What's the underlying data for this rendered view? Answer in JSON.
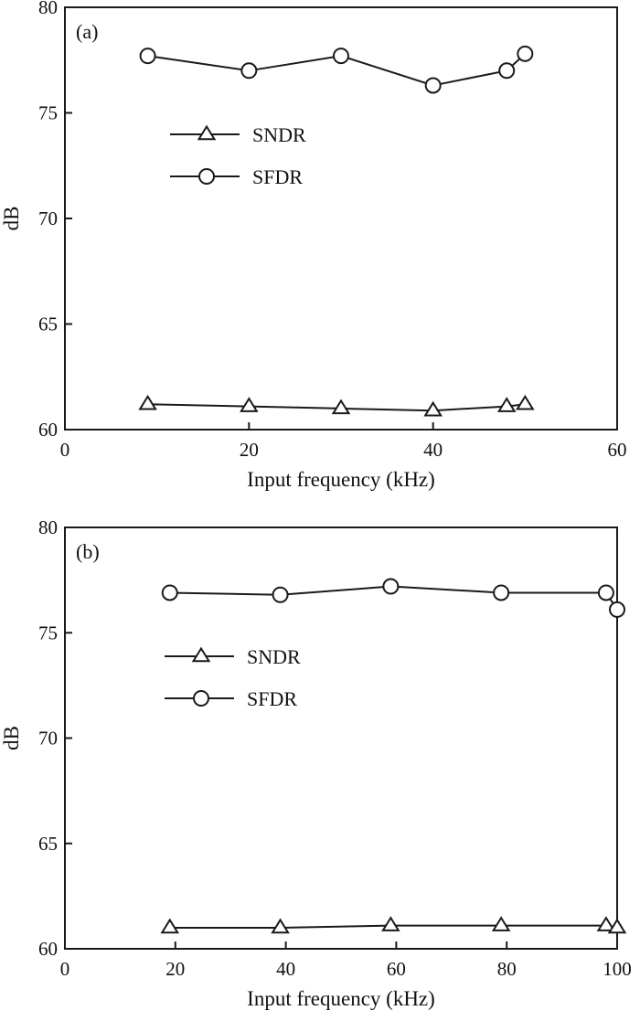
{
  "figure": {
    "colors": {
      "line": "#1a1a1a",
      "text": "#111111",
      "background": "#ffffff"
    }
  },
  "chart_data": [
    {
      "type": "line",
      "panel_label": "(a)",
      "xlabel": "Input frequency (kHz)",
      "ylabel": "dB",
      "xlim": [
        0,
        60
      ],
      "ylim": [
        60,
        80
      ],
      "xticks": [
        0,
        20,
        40,
        60
      ],
      "yticks": [
        60,
        65,
        70,
        75,
        80
      ],
      "grid": false,
      "legend_position": "upper-left",
      "series": [
        {
          "name": "SNDR",
          "marker": "triangle",
          "x": [
            9,
            20,
            30,
            40,
            48,
            50
          ],
          "y": [
            61.2,
            61.1,
            61.0,
            60.9,
            61.1,
            61.2
          ]
        },
        {
          "name": "SFDR",
          "marker": "circle",
          "x": [
            9,
            20,
            30,
            40,
            48,
            50
          ],
          "y": [
            77.7,
            77.0,
            77.7,
            76.3,
            77.0,
            77.8
          ]
        }
      ]
    },
    {
      "type": "line",
      "panel_label": "(b)",
      "xlabel": "Input frequency (kHz)",
      "ylabel": "dB",
      "xlim": [
        0,
        100
      ],
      "ylim": [
        60,
        80
      ],
      "xticks": [
        0,
        20,
        40,
        60,
        80,
        100
      ],
      "yticks": [
        60,
        65,
        70,
        75,
        80
      ],
      "grid": false,
      "legend_position": "upper-left",
      "series": [
        {
          "name": "SNDR",
          "marker": "triangle",
          "x": [
            19,
            39,
            59,
            79,
            98,
            100
          ],
          "y": [
            61.0,
            61.0,
            61.1,
            61.1,
            61.1,
            61.0
          ]
        },
        {
          "name": "SFDR",
          "marker": "circle",
          "x": [
            19,
            39,
            59,
            79,
            98,
            100
          ],
          "y": [
            76.9,
            76.8,
            77.2,
            76.9,
            76.9,
            76.1
          ]
        }
      ]
    }
  ]
}
